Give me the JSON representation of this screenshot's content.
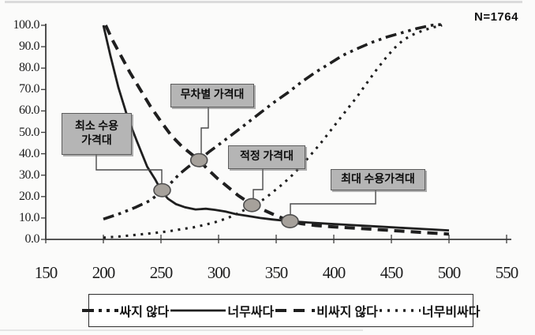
{
  "annotation": {
    "sample_size": "N=1764"
  },
  "chart_data": {
    "type": "line",
    "title": "",
    "xlabel": "",
    "ylabel": "",
    "xlim": [
      150,
      550
    ],
    "ylim": [
      0,
      100
    ],
    "grid": false,
    "legend_position": "bottom",
    "x_ticks": [
      "150",
      "200",
      "250",
      "300",
      "350",
      "400",
      "450",
      "500",
      "550"
    ],
    "y_ticks": [
      "100.0",
      "90.0",
      "80.0",
      "70.0",
      "60.0",
      "50.0",
      "40.0",
      "30.0",
      "20.0",
      "10.0",
      "0.0"
    ],
    "series": [
      {
        "name": "싸지 않다",
        "style": "dash-dot-dot",
        "points": [
          [
            200,
            9.5
          ],
          [
            214,
            12
          ],
          [
            228,
            15
          ],
          [
            240,
            18
          ],
          [
            250,
            22
          ],
          [
            258,
            26
          ],
          [
            266,
            30.5
          ],
          [
            274,
            34
          ],
          [
            283,
            37
          ],
          [
            292,
            41
          ],
          [
            302,
            45
          ],
          [
            313,
            49.5
          ],
          [
            324,
            54
          ],
          [
            336,
            59
          ],
          [
            348,
            64
          ],
          [
            360,
            68.5
          ],
          [
            372,
            73.5
          ],
          [
            384,
            78
          ],
          [
            396,
            82
          ],
          [
            408,
            86
          ],
          [
            420,
            89
          ],
          [
            433,
            92
          ],
          [
            446,
            94.5
          ],
          [
            459,
            96.5
          ],
          [
            472,
            98.5
          ],
          [
            485,
            100
          ],
          [
            497,
            100.5
          ]
        ]
      },
      {
        "name": "너무싸다",
        "style": "solid",
        "points": [
          [
            200,
            100
          ],
          [
            206,
            86
          ],
          [
            213,
            71
          ],
          [
            221,
            57
          ],
          [
            229,
            46
          ],
          [
            238,
            34
          ],
          [
            245,
            28
          ],
          [
            250,
            23
          ],
          [
            256,
            19
          ],
          [
            263,
            16.5
          ],
          [
            271,
            15
          ],
          [
            280,
            14
          ],
          [
            289,
            14.3
          ],
          [
            297,
            13.8
          ],
          [
            306,
            13
          ],
          [
            315,
            11.8
          ],
          [
            325,
            11
          ],
          [
            336,
            10
          ],
          [
            347,
            9.3
          ],
          [
            362,
            8.5
          ],
          [
            378,
            7.9
          ],
          [
            395,
            7.3
          ],
          [
            413,
            6.8
          ],
          [
            432,
            6.2
          ],
          [
            452,
            5.6
          ],
          [
            472,
            5
          ],
          [
            500,
            4.2
          ]
        ]
      },
      {
        "name": "비싸지 않다",
        "style": "dashed",
        "points": [
          [
            202,
            100
          ],
          [
            208,
            93
          ],
          [
            215,
            86
          ],
          [
            223,
            78
          ],
          [
            232,
            70
          ],
          [
            241,
            62
          ],
          [
            250,
            55
          ],
          [
            259,
            48.5
          ],
          [
            268,
            43.5
          ],
          [
            276,
            40
          ],
          [
            283,
            37
          ],
          [
            291,
            32.5
          ],
          [
            299,
            28.5
          ],
          [
            308,
            24.5
          ],
          [
            317,
            20.5
          ],
          [
            324,
            18
          ],
          [
            330,
            16
          ],
          [
            338,
            14
          ],
          [
            347,
            11.8
          ],
          [
            355,
            10
          ],
          [
            362,
            8.5
          ],
          [
            372,
            7.3
          ],
          [
            384,
            6.5
          ],
          [
            398,
            5.9
          ],
          [
            414,
            5.4
          ],
          [
            432,
            4.8
          ],
          [
            452,
            4.1
          ],
          [
            472,
            3.4
          ],
          [
            500,
            2.5
          ]
        ]
      },
      {
        "name": "너무비싸다",
        "style": "dotted",
        "points": [
          [
            200,
            0.8
          ],
          [
            215,
            1.4
          ],
          [
            230,
            2.2
          ],
          [
            244,
            3
          ],
          [
            257,
            3.8
          ],
          [
            268,
            4.8
          ],
          [
            278,
            5.6
          ],
          [
            288,
            6.8
          ],
          [
            298,
            8.2
          ],
          [
            308,
            10
          ],
          [
            317,
            12.2
          ],
          [
            325,
            14.5
          ],
          [
            332,
            16.5
          ],
          [
            340,
            19
          ],
          [
            348,
            22.5
          ],
          [
            356,
            26
          ],
          [
            364,
            30
          ],
          [
            372,
            34.5
          ],
          [
            380,
            39.5
          ],
          [
            388,
            44.5
          ],
          [
            396,
            50
          ],
          [
            404,
            55.5
          ],
          [
            412,
            61
          ],
          [
            420,
            66.5
          ],
          [
            428,
            72.5
          ],
          [
            436,
            78.5
          ],
          [
            444,
            84
          ],
          [
            452,
            89
          ],
          [
            460,
            93
          ],
          [
            468,
            95.5
          ],
          [
            477,
            97.5
          ],
          [
            486,
            99
          ],
          [
            494,
            100
          ]
        ]
      }
    ],
    "annotations": [
      {
        "label": "최소 수용\n가격대",
        "x": 251,
        "y": 23
      },
      {
        "label": "무차별 가격대",
        "x": 283,
        "y": 37
      },
      {
        "label": "적정 가격대",
        "x": 329,
        "y": 16
      },
      {
        "label": "최대 수용가격대",
        "x": 362,
        "y": 8.5
      }
    ]
  },
  "colors": {
    "line": "#1f1f1f",
    "axis": "#3c3c3c",
    "callout_fill": "#b5b5b5",
    "callout_border": "#5c5c5c",
    "marker_fill": "#a6a19b",
    "marker_border": "#4e4e4e",
    "background": "#fbfbfa"
  }
}
